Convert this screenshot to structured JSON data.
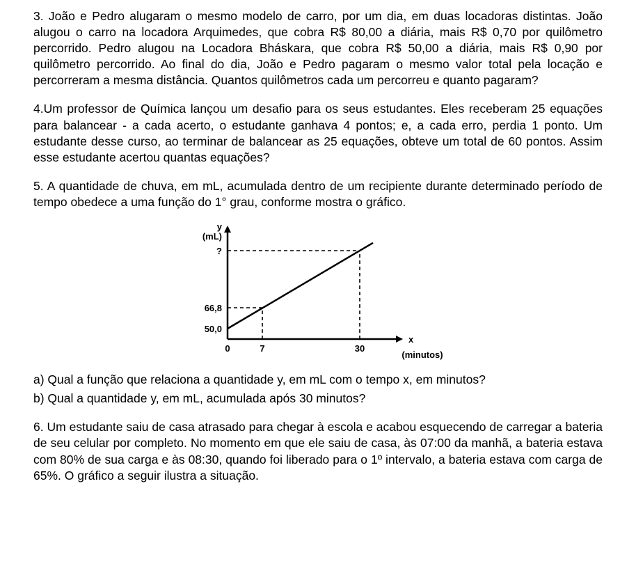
{
  "q3": {
    "text": "3. João e Pedro alugaram o mesmo modelo de carro, por um dia, em duas locadoras distintas. João alugou o carro na locadora Arquimedes, que cobra R$ 80,00 a diária, mais R$ 0,70 por quilômetro percorrido. Pedro alugou na Locadora Bháskara, que cobra R$ 50,00 a diária, mais R$ 0,90 por quilômetro percorrido. Ao final do dia, João e Pedro pagaram o mesmo valor total pela locação e percorreram a mesma distância. Quantos quilômetros cada um percorreu e quanto pagaram?"
  },
  "q4": {
    "text": "4.Um professor de Química lançou um desafio para os seus estudantes. Eles receberam 25 equações para balancear - a cada acerto, o estudante ganhava 4 pontos; e, a cada erro, perdia 1 ponto. Um estudante desse curso, ao terminar de balancear as 25 equações, obteve um total de 60 pontos. Assim esse estudante acertou quantas equações?"
  },
  "q5": {
    "intro": "5. A quantidade de chuva, em mL, acumulada dentro de um recipiente durante determinado período de tempo obedece a uma função do 1° grau, conforme mostra o gráfico.",
    "a": "a) Qual a função que relaciona a quantidade y, em mL com o tempo x, em minutos?",
    "b": "b) Qual a quantidade y, em mL, acumulada após 30 minutos?",
    "chart": {
      "type": "line",
      "y_axis_label_top": "y",
      "y_axis_unit": "(mL)",
      "x_axis_label": "x",
      "x_axis_unit": "(minutos)",
      "y_ticks": [
        {
          "value": "50,0",
          "px": 160
        },
        {
          "value": "66,8",
          "px": 130
        },
        {
          "value": "?",
          "px": 48
        }
      ],
      "x_ticks": [
        {
          "value": "0",
          "px": 80
        },
        {
          "value": "7",
          "px": 130
        },
        {
          "value": "30",
          "px": 270
        }
      ],
      "points": [
        {
          "x": 80,
          "y": 160
        },
        {
          "x": 130,
          "y": 130
        },
        {
          "x": 270,
          "y": 48
        }
      ],
      "stroke": "#000000",
      "stroke_width_axis": 2.5,
      "stroke_width_line": 2.5,
      "font_size": 13,
      "font_weight": "bold"
    }
  },
  "q6": {
    "text": "6. Um estudante saiu de casa atrasado para chegar à escola e acabou esquecendo de carregar a bateria de seu celular por completo. No momento em que ele saiu de casa, às 07:00 da manhã, a bateria estava com 80% de sua carga e às 08:30, quando foi liberado para o 1º intervalo, a bateria estava com carga de 65%. O gráfico a seguir ilustra a situação."
  }
}
